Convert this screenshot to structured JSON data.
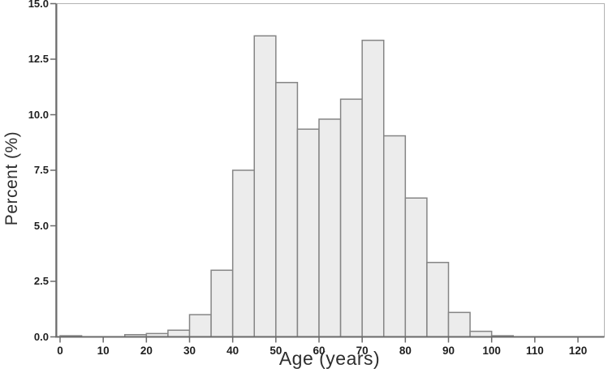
{
  "chart_data": {
    "type": "bar",
    "subtype": "histogram",
    "title": "",
    "xlabel": "Age (years)",
    "ylabel": "Percent (%)",
    "bin_width_years": 5,
    "bin_starts": [
      0,
      5,
      10,
      15,
      20,
      25,
      30,
      35,
      40,
      45,
      50,
      55,
      60,
      65,
      70,
      75,
      80,
      85,
      90,
      95,
      100,
      105,
      110,
      115,
      120
    ],
    "values": [
      0.05,
      0,
      0,
      0.1,
      0.15,
      0.3,
      1.0,
      3.0,
      7.5,
      13.55,
      11.45,
      9.35,
      9.8,
      10.7,
      13.35,
      9.05,
      6.25,
      3.35,
      1.1,
      0.25,
      0.05,
      0,
      0,
      0,
      0
    ],
    "x_ticks": [
      0,
      10,
      20,
      30,
      40,
      50,
      60,
      70,
      80,
      90,
      100,
      110,
      120
    ],
    "x_tick_labels": [
      "0",
      "10",
      "20",
      "30",
      "40",
      "50",
      "60",
      "70",
      "80",
      "90",
      "100",
      "110",
      "120"
    ],
    "y_ticks": [
      0,
      2.5,
      5,
      7.5,
      10,
      12.5,
      15
    ],
    "y_tick_labels": [
      "0.0",
      "2.5",
      "5.0",
      "7.5",
      "10.0",
      "12.5",
      "15.0"
    ],
    "xlim": [
      -1,
      126
    ],
    "ylim": [
      0,
      15
    ],
    "grid": false,
    "legend": null,
    "colors": {
      "bar_fill": "#ececec",
      "bar_stroke": "#858585",
      "axis_line": "#6a6a6a",
      "frame_line": "#b3b3b3",
      "tick_label": "#1f1f1f",
      "axis_title": "#2e2e2e",
      "background": "#ffffff"
    }
  }
}
